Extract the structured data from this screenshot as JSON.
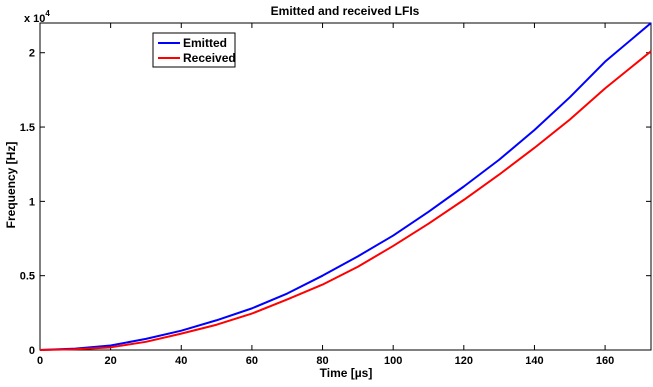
{
  "chart_data": {
    "type": "line",
    "title": "Emitted and received LFIs",
    "xlabel": "Time [µs]",
    "ylabel": "Frequency [Hz]",
    "xlim": [
      0,
      173
    ],
    "ylim": [
      0,
      22000
    ],
    "x_ticks": [
      0,
      20,
      40,
      60,
      80,
      100,
      120,
      140,
      160
    ],
    "y_ticks": [
      0,
      5000,
      10000,
      15000,
      20000
    ],
    "x_tick_labels": [
      "0",
      "20",
      "40",
      "60",
      "80",
      "100",
      "120",
      "140",
      "160"
    ],
    "y_tick_labels": [
      "0",
      "0.5",
      "1",
      "1.5",
      "2"
    ],
    "y_exponent_label": "x 10",
    "y_exponent_power": "4",
    "grid": false,
    "legend_position": "top-left",
    "series": [
      {
        "name": "Emitted",
        "color": "#0000ff",
        "x": [
          0,
          10,
          20,
          30,
          40,
          50,
          60,
          70,
          80,
          90,
          100,
          110,
          120,
          130,
          140,
          150,
          160,
          173
        ],
        "y": [
          0,
          90,
          300,
          750,
          1300,
          2000,
          2800,
          3800,
          5000,
          6300,
          7700,
          9300,
          11000,
          12800,
          14800,
          17000,
          19400,
          22000
        ]
      },
      {
        "name": "Received",
        "color": "#ff0000",
        "x": [
          0,
          10,
          20,
          30,
          40,
          50,
          60,
          70,
          80,
          90,
          100,
          110,
          120,
          130,
          140,
          150,
          160,
          173
        ],
        "y": [
          0,
          50,
          180,
          550,
          1100,
          1700,
          2450,
          3400,
          4400,
          5600,
          7000,
          8500,
          10100,
          11800,
          13600,
          15500,
          17600,
          20100
        ]
      }
    ]
  }
}
